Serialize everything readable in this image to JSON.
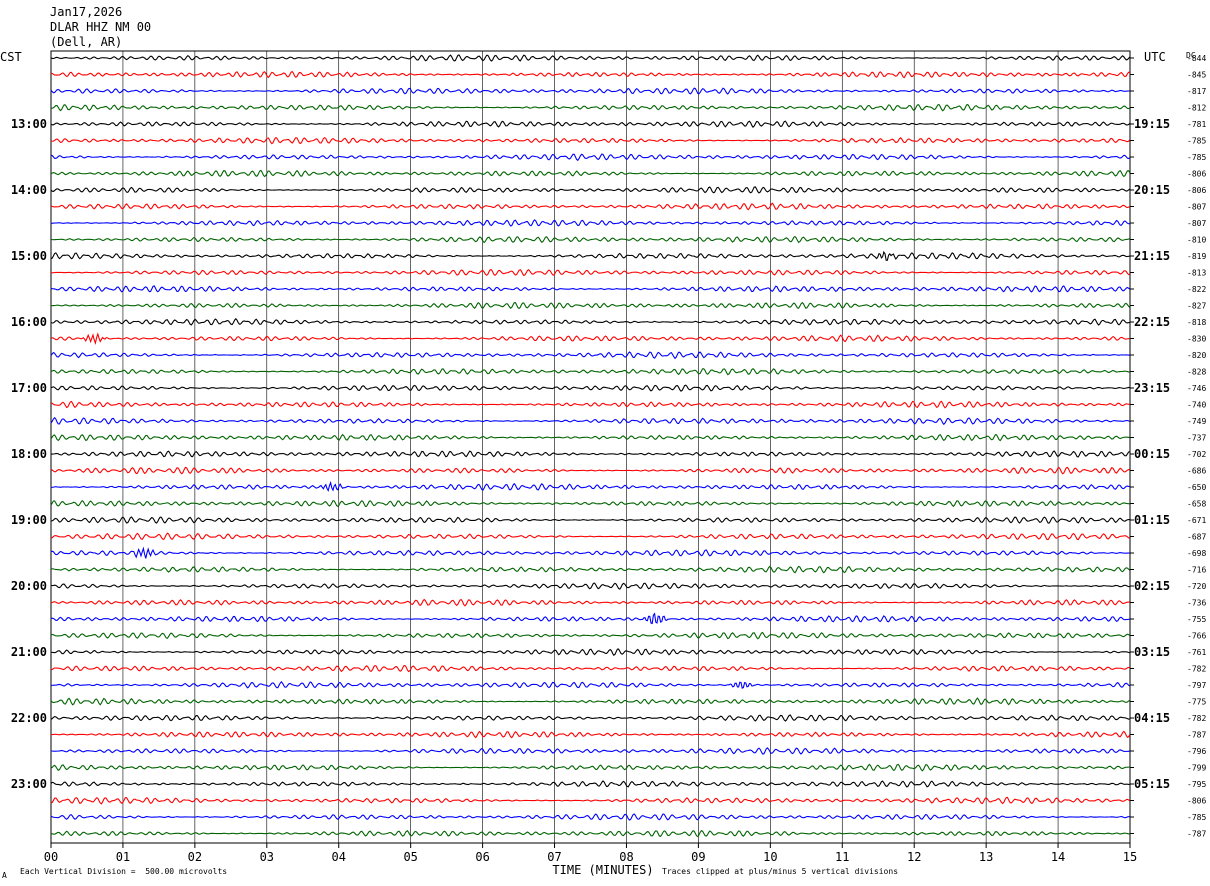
{
  "header": {
    "date": "Jan17,2026",
    "station": "DLAR HHZ NM 00",
    "location": "(Dell, AR)"
  },
  "left_tz": "CST",
  "right_tz": "UTC",
  "dc_label": "DC",
  "footer": {
    "scale": "Each Vertical Division =  500.00 microvolts",
    "clip": "Traces clipped at plus/minus 5 vertical divisions",
    "mark": "A"
  },
  "chart_data": {
    "type": "line",
    "title": "",
    "xlabel": "TIME (MINUTES)",
    "ylabel": "",
    "xlim": [
      0,
      15
    ],
    "x_ticks": [
      "00",
      "01",
      "02",
      "03",
      "04",
      "05",
      "06",
      "07",
      "08",
      "09",
      "10",
      "11",
      "12",
      "13",
      "14",
      "15"
    ],
    "grid": true,
    "trace_count": 48,
    "trace_colors": [
      "#000000",
      "#ff0000",
      "#0000ff",
      "#006400"
    ],
    "left_hour_labels": [
      "13:00",
      "14:00",
      "15:00",
      "16:00",
      "17:00",
      "18:00",
      "19:00",
      "20:00",
      "21:00",
      "22:00",
      "23:00"
    ],
    "right_hour_labels": [
      "19:15",
      "20:15",
      "21:15",
      "22:15",
      "23:15",
      "00:15",
      "01:15",
      "02:15",
      "03:15",
      "04:15",
      "05:15"
    ],
    "dc_offsets": [
      -844,
      -845,
      -817,
      -812,
      -781,
      -785,
      -785,
      -806,
      -806,
      -807,
      -807,
      -810,
      -819,
      -813,
      -822,
      -827,
      -818,
      -830,
      -820,
      -828,
      -746,
      -740,
      -749,
      -737,
      -702,
      -686,
      -650,
      -658,
      -671,
      -687,
      -698,
      -716,
      -720,
      -736,
      -755,
      -766,
      -761,
      -782,
      -797,
      -775,
      -782,
      -787,
      -796,
      -799,
      -795,
      -806,
      -785,
      -787
    ],
    "events": [
      {
        "trace": 17,
        "minute": 0.6,
        "amp": 1.6
      },
      {
        "trace": 30,
        "minute": 1.3,
        "amp": 1.8
      },
      {
        "trace": 34,
        "minute": 8.4,
        "amp": 2.2
      },
      {
        "trace": 38,
        "minute": 9.6,
        "amp": 1.4
      },
      {
        "trace": 26,
        "minute": 3.9,
        "amp": 1.5
      },
      {
        "trace": 12,
        "minute": 11.6,
        "amp": 1.3
      }
    ]
  }
}
